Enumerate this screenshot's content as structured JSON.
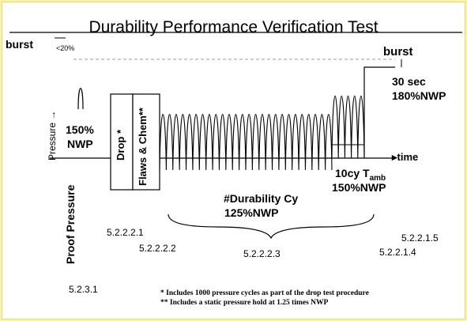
{
  "title": "Durability Performance Verification Test",
  "labels": {
    "burst_left": "burst",
    "burst_margin": "<20%",
    "burst_right": "burst",
    "y_axis": "Pressure →",
    "proof_value": "150%",
    "proof_unit": "NWP",
    "drop": "Drop *",
    "flaws_chem": "Flaws & Chem**",
    "time": "▸time",
    "hold_time": "30 sec",
    "hold_pressure": "180%NWP",
    "tenc_cycles": "10cy T",
    "tenc_sub": "amb",
    "tenc_pressure": "150%NWP",
    "durability": "#Durability Cy",
    "durability_pressure": "125%NWP",
    "proof_pressure": "Proof Pressure"
  },
  "sections": {
    "s5231": "5.2.3.1",
    "s52221": "5.2.2.2.1",
    "s52222": "5.2.2.2.2",
    "s52223": "5.2.2.2.3",
    "s52214": "5.2.2.1.4",
    "s52215": "5.2.2.1.5"
  },
  "footnotes": [
    "* Includes 1000 pressure cycles as part of the drop test procedure",
    "** Includes a static pressure hold at 1.25 times NWP"
  ],
  "colors": {
    "background": "#fbf2a8",
    "line": "#000000",
    "dashed": "#888888"
  }
}
